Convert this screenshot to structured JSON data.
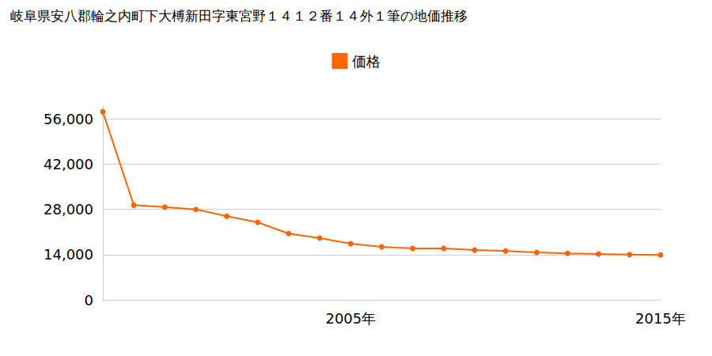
{
  "chart_data": {
    "type": "line",
    "title": "岐阜県安八郡輪之内町下大榑新田字東宮野１４１２番１４外１筆の地価推移",
    "categories": [
      null,
      null,
      null,
      null,
      null,
      null,
      null,
      null,
      "2005年",
      null,
      null,
      null,
      null,
      null,
      null,
      null,
      null,
      null,
      "2015年"
    ],
    "series": [
      {
        "name": "価格",
        "color": "#ff6600",
        "marker": "circle",
        "values": [
          58200,
          29300,
          28700,
          28000,
          25900,
          24000,
          20500,
          19100,
          17400,
          16400,
          15900,
          15900,
          15400,
          15100,
          14700,
          14400,
          14200,
          14000,
          13900
        ]
      }
    ],
    "ylim": [
      0,
      60000
    ],
    "yticks": [
      0,
      {
        "value": 14000,
        "label": "14,000"
      },
      {
        "value": 28000,
        "label": "28,000"
      },
      {
        "value": 42000,
        "label": "42,000"
      },
      {
        "value": 56000,
        "label": "56,000"
      }
    ],
    "grid": true,
    "legend": "top"
  }
}
